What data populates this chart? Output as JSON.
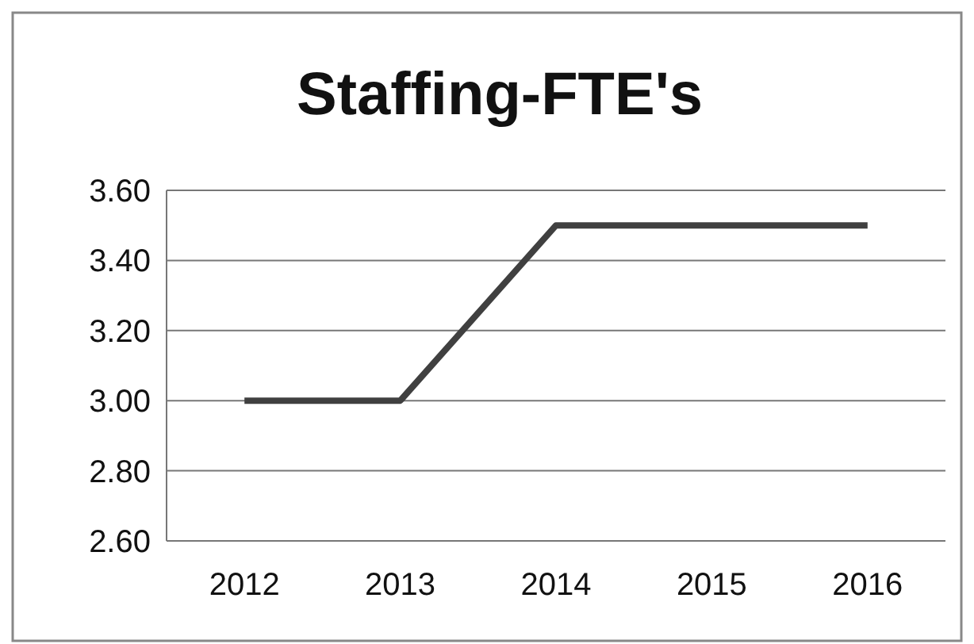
{
  "chart_data": {
    "type": "line",
    "title": "Staffing-FTE's",
    "categories": [
      "2012",
      "2013",
      "2014",
      "2015",
      "2016"
    ],
    "series": [
      {
        "color": "#404040",
        "values": [
          3.0,
          3.0,
          3.5,
          3.5,
          3.5
        ]
      }
    ],
    "ylim": [
      2.6,
      3.6
    ],
    "yticks": [
      {
        "value": 2.6,
        "label": "2.60"
      },
      {
        "value": 2.8,
        "label": "2.80"
      },
      {
        "value": 3.0,
        "label": "3.00"
      },
      {
        "value": 3.2,
        "label": "3.20"
      },
      {
        "value": 3.4,
        "label": "3.40"
      },
      {
        "value": 3.6,
        "label": "3.60"
      }
    ],
    "grid": "y",
    "marker": "none",
    "line_style": "solid"
  }
}
